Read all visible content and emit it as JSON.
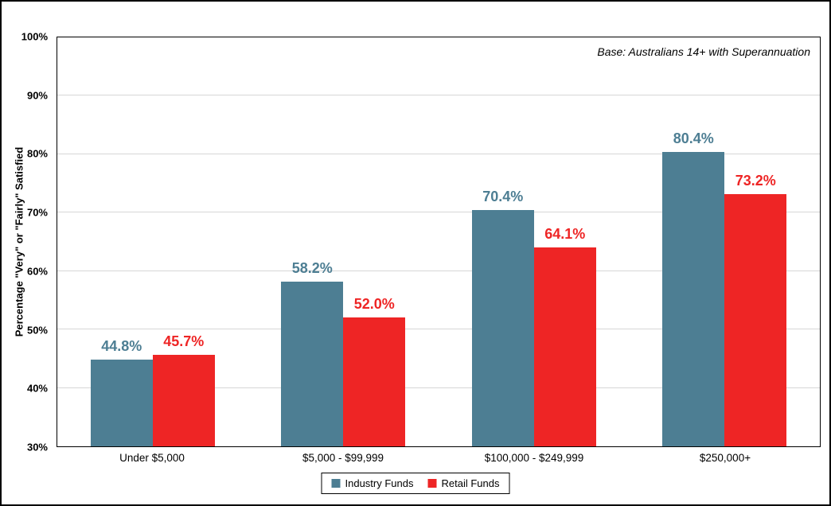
{
  "chart": {
    "annotation": "Base: Australians 14+ with Superannuation"
  },
  "chart_data": {
    "type": "bar",
    "title": "",
    "xlabel": "",
    "ylabel": "Percentage \"Very\" or \"Fairly\" Satisfied",
    "categories": [
      "Under $5,000",
      "$5,000 - $99,999",
      "$100,000 - $249,999",
      "$250,000+"
    ],
    "series": [
      {
        "name": "Industry Funds",
        "color": "#4d7e93",
        "values": [
          44.8,
          58.2,
          70.4,
          80.4
        ]
      },
      {
        "name": "Retail Funds",
        "color": "#ee2525",
        "values": [
          45.7,
          52.0,
          64.1,
          73.2
        ]
      }
    ],
    "ylim": [
      30,
      100
    ],
    "yticks": [
      30,
      40,
      50,
      60,
      70,
      80,
      90,
      100
    ],
    "ytick_format": "{v}%",
    "value_format": "{v}%",
    "grid": "horizontal",
    "legend_position": "bottom"
  }
}
